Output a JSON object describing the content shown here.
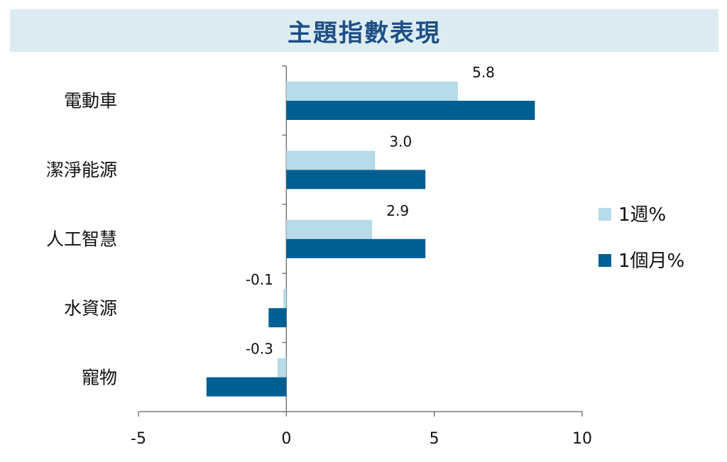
{
  "title": "主題指數表現",
  "chart_data": {
    "type": "bar",
    "orientation": "horizontal",
    "categories": [
      "電動車",
      "潔淨能源",
      "人工智慧",
      "水資源",
      "寵物"
    ],
    "series": [
      {
        "name": "1週%",
        "color": "#b7dbe8",
        "values": [
          5.8,
          3.0,
          2.9,
          -0.1,
          -0.3
        ]
      },
      {
        "name": "1個月%",
        "color": "#005f92",
        "values": [
          8.4,
          4.7,
          4.7,
          -0.6,
          -2.7
        ]
      }
    ],
    "data_labels": [
      "5.8",
      "3.0",
      "2.9",
      "-0.1",
      "-0.3"
    ],
    "x_ticks": [
      -5,
      0,
      5,
      10
    ],
    "xlim": [
      -5,
      10
    ],
    "grid": false,
    "legend_position": "right"
  }
}
